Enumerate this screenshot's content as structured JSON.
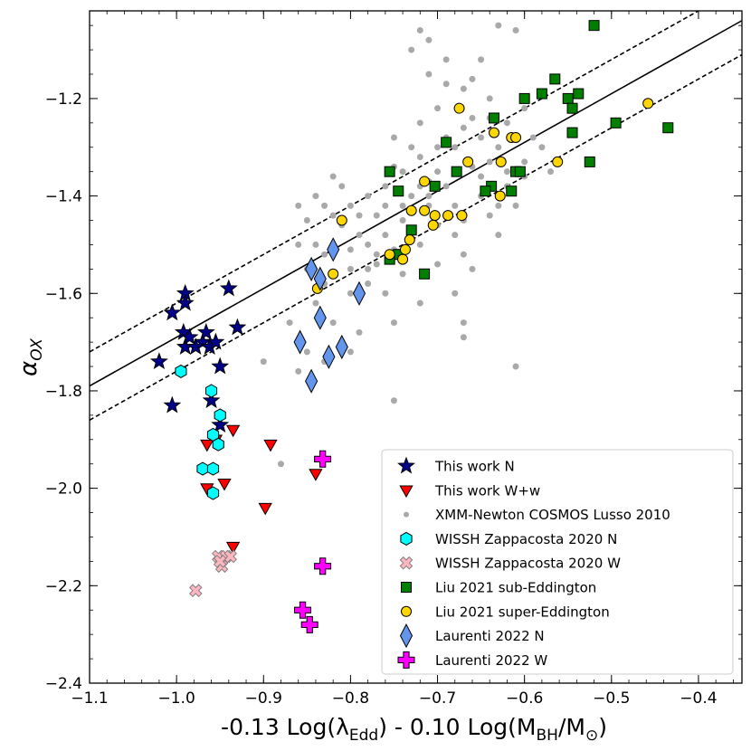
{
  "chart_data": {
    "type": "scatter",
    "xlabel": {
      "main": "-0.13 Log(λ",
      "sub1": "Edd",
      "mid": ") - 0.10 Log(M",
      "sub2": "BH",
      "tail": "/M",
      "sub3": "⊙",
      "end": ")"
    },
    "ylabel": {
      "main": "α",
      "sub": "OX"
    },
    "xlim": [
      -1.1,
      -0.35
    ],
    "ylim": [
      -2.4,
      -1.02
    ],
    "xticks": [
      -1.1,
      -1.0,
      -0.9,
      -0.8,
      -0.7,
      -0.6,
      -0.5,
      -0.4
    ],
    "xtick_labels": [
      "−1.1",
      "−1.0",
      "−0.9",
      "−0.8",
      "−0.7",
      "−0.6",
      "−0.5",
      "−0.4"
    ],
    "yticks": [
      -2.4,
      -2.2,
      -2.0,
      -1.8,
      -1.6,
      -1.4,
      -1.2
    ],
    "ytick_labels": [
      "−2.4",
      "−2.2",
      "−2.0",
      "−1.8",
      "−1.6",
      "−1.4",
      "−1.2"
    ],
    "legend_position": "lower-right",
    "lines": [
      {
        "name": "relation",
        "style": "solid",
        "x": [
          -1.1,
          -0.35
        ],
        "y": [
          -1.79,
          -1.04
        ]
      },
      {
        "name": "upper",
        "style": "dashed",
        "x": [
          -1.1,
          -0.35
        ],
        "y": [
          -1.72,
          -0.97
        ]
      },
      {
        "name": "lower",
        "style": "dashed",
        "x": [
          -1.1,
          -0.35
        ],
        "y": [
          -1.86,
          -1.11
        ]
      }
    ],
    "series": [
      {
        "name": "XMM-Newton COSMOS Lusso 2010",
        "marker": "circle",
        "color": "#a9a9a9",
        "edge": "none",
        "size": 7,
        "points": [
          [
            -0.72,
            -1.06
          ],
          [
            -0.71,
            -1.08
          ],
          [
            -0.63,
            -1.05
          ],
          [
            -0.61,
            -1.06
          ],
          [
            -0.73,
            -1.1
          ],
          [
            -0.69,
            -1.12
          ],
          [
            -0.65,
            -1.12
          ],
          [
            -0.67,
            -1.18
          ],
          [
            -0.64,
            -1.2
          ],
          [
            -0.7,
            -1.22
          ],
          [
            -0.66,
            -1.24
          ],
          [
            -0.72,
            -1.25
          ],
          [
            -0.75,
            -1.28
          ],
          [
            -0.62,
            -1.25
          ],
          [
            -0.6,
            -1.22
          ],
          [
            -0.68,
            -1.3
          ],
          [
            -0.72,
            -1.32
          ],
          [
            -0.74,
            -1.35
          ],
          [
            -0.7,
            -1.35
          ],
          [
            -0.66,
            -1.34
          ],
          [
            -0.63,
            -1.3
          ],
          [
            -0.59,
            -1.28
          ],
          [
            -0.58,
            -1.3
          ],
          [
            -0.76,
            -1.38
          ],
          [
            -0.73,
            -1.4
          ],
          [
            -0.69,
            -1.38
          ],
          [
            -0.65,
            -1.4
          ],
          [
            -0.62,
            -1.38
          ],
          [
            -0.6,
            -1.36
          ],
          [
            -0.78,
            -1.4
          ],
          [
            -0.8,
            -1.42
          ],
          [
            -0.77,
            -1.44
          ],
          [
            -0.74,
            -1.45
          ],
          [
            -0.71,
            -1.42
          ],
          [
            -0.67,
            -1.45
          ],
          [
            -0.64,
            -1.44
          ],
          [
            -0.61,
            -1.42
          ],
          [
            -0.82,
            -1.36
          ],
          [
            -0.83,
            -1.42
          ],
          [
            -0.81,
            -1.46
          ],
          [
            -0.79,
            -1.48
          ],
          [
            -0.76,
            -1.48
          ],
          [
            -0.72,
            -1.5
          ],
          [
            -0.68,
            -1.48
          ],
          [
            -0.63,
            -1.48
          ],
          [
            -0.85,
            -1.45
          ],
          [
            -0.84,
            -1.5
          ],
          [
            -0.82,
            -1.52
          ],
          [
            -0.8,
            -1.55
          ],
          [
            -0.77,
            -1.54
          ],
          [
            -0.74,
            -1.56
          ],
          [
            -0.7,
            -1.54
          ],
          [
            -0.66,
            -1.55
          ],
          [
            -0.86,
            -1.5
          ],
          [
            -0.83,
            -1.58
          ],
          [
            -0.8,
            -1.6
          ],
          [
            -0.76,
            -1.6
          ],
          [
            -0.72,
            -1.62
          ],
          [
            -0.68,
            -1.6
          ],
          [
            -0.84,
            -1.62
          ],
          [
            -0.82,
            -1.66
          ],
          [
            -0.79,
            -1.68
          ],
          [
            -0.75,
            -1.66
          ],
          [
            -0.67,
            -1.66
          ],
          [
            -0.85,
            -1.72
          ],
          [
            -0.8,
            -1.72
          ],
          [
            -0.9,
            -1.74
          ],
          [
            -0.86,
            -1.76
          ],
          [
            -0.67,
            -1.69
          ],
          [
            -0.61,
            -1.75
          ],
          [
            -0.75,
            -1.82
          ],
          [
            -0.7,
            -1.3
          ],
          [
            -0.65,
            -1.28
          ],
          [
            -0.6,
            -1.33
          ],
          [
            -0.57,
            -1.35
          ],
          [
            -0.74,
            -1.42
          ],
          [
            -0.7,
            -1.46
          ],
          [
            -0.67,
            -1.52
          ],
          [
            -0.78,
            -1.58
          ],
          [
            -0.82,
            -1.44
          ],
          [
            -0.86,
            -1.42
          ],
          [
            -0.84,
            -1.4
          ],
          [
            -0.88,
            -1.95
          ],
          [
            -0.69,
            -1.17
          ],
          [
            -0.71,
            -1.15
          ],
          [
            -0.66,
            -1.16
          ],
          [
            -0.64,
            -1.33
          ],
          [
            -0.62,
            -1.35
          ],
          [
            -0.71,
            -1.37
          ],
          [
            -0.73,
            -1.43
          ],
          [
            -0.75,
            -1.51
          ],
          [
            -0.79,
            -1.44
          ],
          [
            -0.76,
            -1.42
          ],
          [
            -0.81,
            -1.38
          ],
          [
            -0.85,
            -1.55
          ],
          [
            -0.83,
            -1.74
          ],
          [
            -0.87,
            -1.66
          ],
          [
            -0.78,
            -1.5
          ],
          [
            -0.75,
            -1.34
          ],
          [
            -0.73,
            -1.3
          ],
          [
            -0.67,
            -1.26
          ],
          [
            -0.64,
            -1.24
          ],
          [
            -0.69,
            -1.28
          ],
          [
            -0.72,
            -1.38
          ],
          [
            -0.65,
            -1.36
          ],
          [
            -0.63,
            -1.42
          ],
          [
            -0.68,
            -1.42
          ],
          [
            -0.71,
            -1.4
          ],
          [
            -0.73,
            -1.47
          ],
          [
            -0.77,
            -1.52
          ],
          [
            -0.8,
            -1.51
          ],
          [
            -0.83,
            -1.52
          ],
          [
            -0.78,
            -1.55
          ]
        ]
      },
      {
        "name": "This work N",
        "marker": "star",
        "color": "#00008b",
        "edge": "#000000",
        "size": 9,
        "points": [
          [
            -1.02,
            -1.74
          ],
          [
            -1.005,
            -1.64
          ],
          [
            -1.005,
            -1.83
          ],
          [
            -0.99,
            -1.6
          ],
          [
            -0.99,
            -1.62
          ],
          [
            -0.992,
            -1.68
          ],
          [
            -0.99,
            -1.71
          ],
          [
            -0.978,
            -1.71
          ],
          [
            -0.97,
            -1.7
          ],
          [
            -0.966,
            -1.68
          ],
          [
            -0.962,
            -1.71
          ],
          [
            -0.955,
            -1.7
          ],
          [
            -0.95,
            -1.75
          ],
          [
            -0.94,
            -1.59
          ],
          [
            -0.93,
            -1.67
          ],
          [
            -0.96,
            -1.82
          ],
          [
            -0.95,
            -1.87
          ],
          [
            -0.985,
            -1.69
          ]
        ]
      },
      {
        "name": "This work W+w",
        "marker": "tri_down",
        "color": "#ff0000",
        "edge": "#000000",
        "size": 8,
        "points": [
          [
            -0.965,
            -1.91
          ],
          [
            -0.955,
            -1.9
          ],
          [
            -0.935,
            -1.88
          ],
          [
            -0.892,
            -1.91
          ],
          [
            -0.965,
            -2.0
          ],
          [
            -0.945,
            -1.99
          ],
          [
            -0.935,
            -2.12
          ],
          [
            -0.898,
            -2.04
          ],
          [
            -0.84,
            -1.97
          ]
        ]
      },
      {
        "name": "WISSH Zappacosta 2020 N",
        "marker": "hexagon",
        "color": "#00ffff",
        "edge": "#000000",
        "size": 7,
        "points": [
          [
            -0.995,
            -1.76
          ],
          [
            -0.96,
            -1.8
          ],
          [
            -0.95,
            -1.85
          ],
          [
            -0.958,
            -1.89
          ],
          [
            -0.952,
            -1.91
          ],
          [
            -0.97,
            -1.96
          ],
          [
            -0.958,
            -1.96
          ],
          [
            -0.958,
            -2.01
          ]
        ]
      },
      {
        "name": "WISSH Zappacosta 2020 W",
        "marker": "x",
        "color": "#ffb6c1",
        "edge": "#808080",
        "size": 7,
        "points": [
          [
            -0.978,
            -2.21
          ],
          [
            -0.952,
            -2.14
          ],
          [
            -0.948,
            -2.16
          ],
          [
            -0.943,
            -2.14
          ],
          [
            -0.938,
            -2.14
          ],
          [
            -0.95,
            -2.15
          ]
        ]
      },
      {
        "name": "Liu 2021 sub-Eddington",
        "marker": "square",
        "color": "#007f00",
        "edge": "#000000",
        "size": 11,
        "points": [
          [
            -0.52,
            -1.05
          ],
          [
            -0.565,
            -1.16
          ],
          [
            -0.58,
            -1.19
          ],
          [
            -0.6,
            -1.2
          ],
          [
            -0.55,
            -1.2
          ],
          [
            -0.545,
            -1.22
          ],
          [
            -0.538,
            -1.19
          ],
          [
            -0.545,
            -1.27
          ],
          [
            -0.495,
            -1.25
          ],
          [
            -0.435,
            -1.26
          ],
          [
            -0.525,
            -1.33
          ],
          [
            -0.635,
            -1.24
          ],
          [
            -0.69,
            -1.29
          ],
          [
            -0.755,
            -1.35
          ],
          [
            -0.745,
            -1.39
          ],
          [
            -0.703,
            -1.38
          ],
          [
            -0.678,
            -1.35
          ],
          [
            -0.638,
            -1.38
          ],
          [
            -0.645,
            -1.39
          ],
          [
            -0.615,
            -1.39
          ],
          [
            -0.61,
            -1.35
          ],
          [
            -0.605,
            -1.35
          ],
          [
            -0.73,
            -1.47
          ],
          [
            -0.745,
            -1.52
          ],
          [
            -0.755,
            -1.53
          ],
          [
            -0.715,
            -1.56
          ]
        ]
      },
      {
        "name": "Liu 2021 super-Eddington",
        "marker": "circle",
        "color": "#ffd700",
        "edge": "#000000",
        "size": 11,
        "points": [
          [
            -0.675,
            -1.22
          ],
          [
            -0.458,
            -1.21
          ],
          [
            -0.635,
            -1.27
          ],
          [
            -0.615,
            -1.28
          ],
          [
            -0.61,
            -1.28
          ],
          [
            -0.627,
            -1.33
          ],
          [
            -0.562,
            -1.33
          ],
          [
            -0.665,
            -1.33
          ],
          [
            -0.715,
            -1.37
          ],
          [
            -0.628,
            -1.4
          ],
          [
            -0.73,
            -1.43
          ],
          [
            -0.715,
            -1.43
          ],
          [
            -0.703,
            -1.44
          ],
          [
            -0.688,
            -1.44
          ],
          [
            -0.672,
            -1.44
          ],
          [
            -0.705,
            -1.46
          ],
          [
            -0.81,
            -1.45
          ],
          [
            -0.732,
            -1.49
          ],
          [
            -0.737,
            -1.51
          ],
          [
            -0.755,
            -1.52
          ],
          [
            -0.74,
            -1.53
          ],
          [
            -0.82,
            -1.56
          ],
          [
            -0.838,
            -1.59
          ]
        ]
      },
      {
        "name": "Laurenti 2022 N",
        "marker": "diamond",
        "color": "#6495ed",
        "edge": "#000000",
        "size": 10,
        "points": [
          [
            -0.82,
            -1.51
          ],
          [
            -0.845,
            -1.55
          ],
          [
            -0.835,
            -1.57
          ],
          [
            -0.79,
            -1.6
          ],
          [
            -0.835,
            -1.65
          ],
          [
            -0.858,
            -1.7
          ],
          [
            -0.81,
            -1.71
          ],
          [
            -0.825,
            -1.73
          ],
          [
            -0.845,
            -1.78
          ]
        ]
      },
      {
        "name": "Laurenti 2022 W",
        "marker": "plus",
        "color": "#ff00ff",
        "edge": "#000000",
        "size": 9,
        "points": [
          [
            -0.832,
            -1.94
          ],
          [
            -0.832,
            -2.16
          ],
          [
            -0.855,
            -2.25
          ],
          [
            -0.847,
            -2.28
          ]
        ]
      }
    ],
    "legend_order": [
      "This work N",
      "This work W+w",
      "XMM-Newton COSMOS Lusso 2010",
      "WISSH Zappacosta 2020 N",
      "WISSH Zappacosta 2020 W",
      "Liu 2021 sub-Eddington",
      "Liu 2021 super-Eddington",
      "Laurenti 2022 N",
      "Laurenti 2022 W"
    ]
  }
}
